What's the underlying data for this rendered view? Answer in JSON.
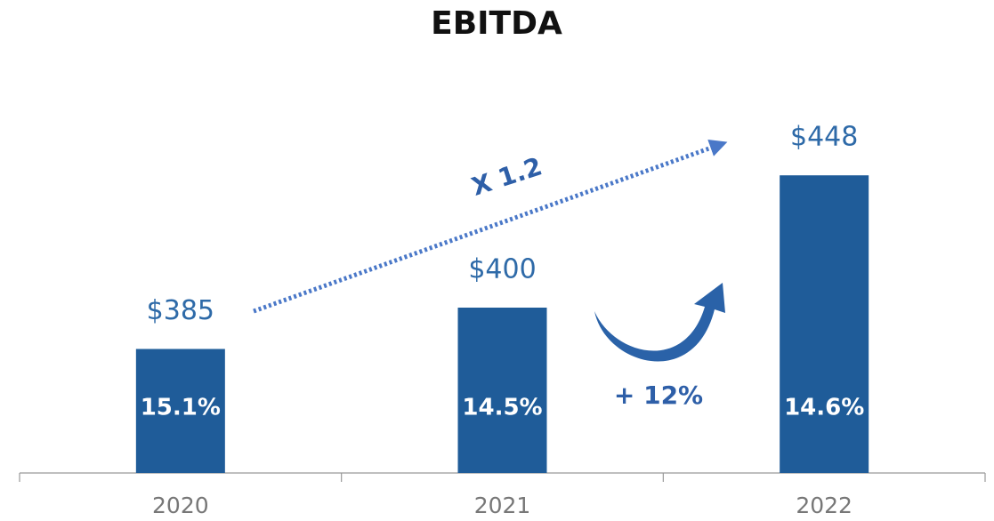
{
  "chart_data": {
    "type": "bar",
    "title": "EBITDA",
    "categories": [
      "2020",
      "2021",
      "2022"
    ],
    "values": [
      385,
      400,
      448
    ],
    "value_labels": [
      "$385",
      "$400",
      "$448"
    ],
    "margin_labels": [
      "15.1%",
      "14.5%",
      "14.6%"
    ],
    "color": "#1f5c99",
    "ylim": [
      340,
      460
    ],
    "annotations": [
      "X 1.2",
      "+ 12%"
    ]
  }
}
